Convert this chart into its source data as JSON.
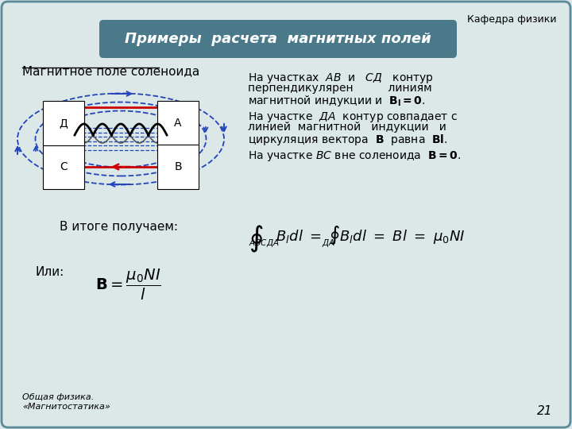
{
  "slide_bg": "#dce8e8",
  "border_color": "#5a8a9a",
  "title_text": "Примеры  расчета  магнитных полей",
  "title_bg": "#4a7a8a",
  "header_text": "Кафедра физики",
  "subtitle": "Магнитное поле соленоида",
  "para1_line1": "На участках  $AB$  и   $СД$   контур",
  "para1_line2": "перпендикулярен          линиям",
  "para1_line3": "магнитной индукции и  $\\mathbf{B_l = 0}$.",
  "para2_line1": "На участке  $ДА$  контур совпадает с",
  "para2_line2": "линией  магнитной   индукции   и",
  "para2_line3": "циркуляция вектора  $\\mathbf{B}$  равна  $\\mathbf{Bl}$.",
  "para3": "На участке $BC$ вне соленоида  $\\mathbf{B = 0}$.",
  "result_label": "В итоге получаем:",
  "or_label": "Или:",
  "footer1": "Общая физика.",
  "footer2": "«Магнитостатика»",
  "page_num": "21",
  "blue": "#2244bb",
  "red": "#cc0000"
}
